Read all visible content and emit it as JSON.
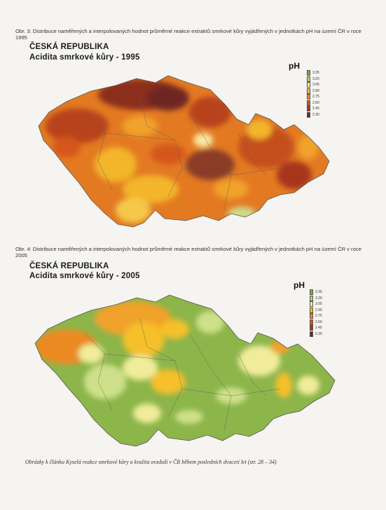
{
  "figure1": {
    "caption": "Obr. 3: Distribuce naměřených a interpolovaných hodnot průměrné reakce extraktů smrkové kůry vyjádřených v jednotkách pH na území ČR v roce 1995",
    "country_title": "ČESKÁ REPUBLIKA",
    "map_title": "Acidita smrkové kůry - 1995",
    "legend_title": "pH",
    "legend": [
      {
        "value": "3.35",
        "color": "#7aa83a"
      },
      {
        "value": "3.20",
        "color": "#b7cf6a"
      },
      {
        "value": "3.05",
        "color": "#f0ec9a"
      },
      {
        "value": "2.90",
        "color": "#f5c02a"
      },
      {
        "value": "2.75",
        "color": "#ec8a24"
      },
      {
        "value": "2.60",
        "color": "#d5561d"
      },
      {
        "value": "2.45",
        "color": "#a7361d"
      },
      {
        "value": "2.30",
        "color": "#6e2620"
      }
    ]
  },
  "figure2": {
    "caption": "Obr. 4: Distribuce naměřených a interpolovaných hodnot průměrné reakce extraktů smrkové kůry vyjádřených v jednotkách pH na území ČR v roce 2005",
    "country_title": "ČESKÁ REPUBLIKA",
    "map_title": "Acidita smrkové kůry - 2005",
    "legend_title": "pH",
    "legend": [
      {
        "value": "3.35",
        "color": "#7aa83a"
      },
      {
        "value": "3.20",
        "color": "#b7cf6a"
      },
      {
        "value": "3.05",
        "color": "#f0ec9a"
      },
      {
        "value": "2.90",
        "color": "#f5c02a"
      },
      {
        "value": "2.75",
        "color": "#ec8a24"
      },
      {
        "value": "2.60",
        "color": "#d5561d"
      },
      {
        "value": "2.45",
        "color": "#a7361d"
      },
      {
        "value": "2.30",
        "color": "#6e2620"
      }
    ]
  },
  "footer": "Obrázky k článku Kyselá reakce smrkové kůry a kvalita ovzduší v ČR během posledních dvaceti let (str. 28 – 34)"
}
